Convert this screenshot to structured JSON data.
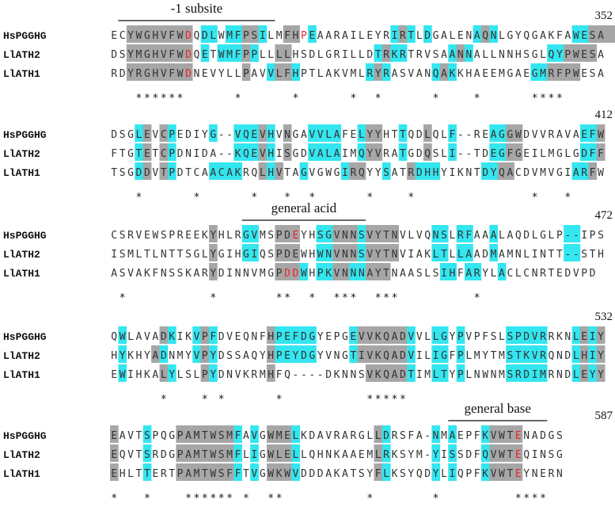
{
  "names": [
    "HsPGGHG",
    "LlATH2",
    "LlATH1"
  ],
  "colors": {
    "identical": "#a6a6a6",
    "similar": "#33e6f0",
    "catalytic": "#e8262a",
    "text": "#333333"
  },
  "blocks": [
    {
      "end": "352",
      "feature": {
        "label": "-1 subsite",
        "from": 1,
        "to": 19
      },
      "rows": [
        {
          "seq": "ECYWGHVFWDQDLWMFPSILMFHPEAARAILEYRIRTLDGALENAQNLGYQGAKFAWESA",
          "shade": "..gggggggg.cc.ccggc..gg.c.........cgc.c.....cgc.........ccgggg",
          "red": [
            9,
            23
          ]
        },
        {
          "seq": "DSYMGHVFWDQETWMFPPLLLLHSDLGRILLDTRKRTRVSAANNALLNNHSGLQYPWESA",
          "shade": "..gggggggg.c.cccgc..gg..........cgcc.....cgc.........ccgggg",
          "red": [
            9
          ]
        },
        {
          "seq": "RDYRGHVFWDNEVYLLPAVVLFHPTLAKVMLRYRASVANQAKKHAEEMGAEGMRFPWESA",
          "shade": "..gggggggg......g..cggc........cgc.....cgc.........ccgggg",
          "red": [
            9
          ]
        }
      ],
      "conservation": "   ******      *      *      *  *      *    *      ****"
    },
    {
      "end": "412",
      "feature": null,
      "rows": [
        {
          "seq": "DSGLEVCPEDIYG--VQEVHVNGAVVLAFELYYHTTQDLQLF--REAGGWDVVRAVAEFW",
          "shade": "...cg.gc....c..cccgc.g..cccc..cgg..c..g..c....ccgg.......ccg",
          "red": []
        },
        {
          "seq": "FTGTETCPDNIDA--KQEVHISGDVALAIMQYVRATGDQSLI--TDEGFGEILMGLGDFF",
          "shade": "...cg.gc.......cccgc.g..cccc..cgg..c..g..c....ccgg.......ccg",
          "red": []
        },
        {
          "seq": "TSGDDVTPDTCAACAKRQLHVTAGVGWGIRQYYSATRDHHYIKNTDYQACDVMVGIARFW",
          "shade": "...cg.gc....cccc..gcg..c....cgg..c..gccc.....ccgg.......ccg",
          "red": []
        }
      ],
      "conservation": "   *      *      *   *  *      *    *              *   *"
    },
    {
      "end": "472",
      "feature": {
        "label": "general acid",
        "from": 16,
        "to": 30
      },
      "rows": [
        {
          "seq": "CSRVEWSPREEKYHLRGVMSPDEYHSGVNNSVYTNVLVQNSLRFAAALAQDLGLP--IPS",
          "shade": "............g...cc..ggg..ccgggcgggg....cc.cc..c........cc...",
          "red": [
            22
          ]
        },
        {
          "seq": "ISMLTLNTTSGLYGIHGIQSPDEWHWNVNNSVYTNVIAKLTLLAADMAMNLINTT--STH",
          "shade": "............g...cc..ggg..ccgggcgggg....cc.cc..c........cc...",
          "red": []
        },
        {
          "seq": "ASVAKFNSSKARYDINNVMGPDDWHPKVNNNAYTNAASLSIHFARYLACLCNRTEDVPD",
          "shade": "............g.......gggc.ccggccggg......cc.cc..c.............",
          "red": [
            21,
            22
          ]
        }
      ],
      "conservation": " *          *       **  *  ***  ***         *"
    },
    {
      "end": "532",
      "feature": null,
      "rows": [
        {
          "seq": "QWLAVADKIKVPFDVEQNFHPEFDGYEPGEVVKQADVVLLGYPVPFSLSPDVRRKNLEIY",
          "shade": ".c....gc..cgc......gccccc....cggggggc..cc.c.....ccccc...cgcg",
          "red": []
        },
        {
          "seq": "HYKHYADNMYVPYDSSAQYHPEYDGYVNGTIVKQADVILIGFPLMYTMSTKVRQNDLHIY",
          "shade": ".c...gc...cgc......gccccc....cggggggc..cc.c.....ccccc...cgcg",
          "red": []
        },
        {
          "seq": "EWIHKALYLSLPYDNVKRMHFQ----DKNNSVKQADTIMLTYPLNWNMSRDIMRNDLEYY",
          "shade": ".c....gc...gc......g...........gggggc..cc.c.....ccccc...cgcg",
          "red": []
        }
      ],
      "conservation": "      *    * *      *          *****"
    },
    {
      "end": "587",
      "feature": {
        "label": "general base",
        "from": 41,
        "to": 52
      },
      "rows": [
        {
          "seq": "EAVTSPQGPAMTWSMFAVGWMELKDAVRARGLLDRSFA-NMAEPFKVWTENADGS",
          "shade": "g...c...gggggggc.c.gggc.........gc.....c.c...cgggg.....",
          "red": [
            49
          ]
        },
        {
          "seq": "EQVTSRDGPAMTWSMFLIGWLELLQHNKAAEMLRKSYM-YISSDFQVWTEQINSG",
          "shade": "g...c...gggggggc.c.gggc.........gc.....c.c...cgggg.....",
          "red": [
            49
          ]
        },
        {
          "seq": "EHLTTERTPAMTWSFFTVGWKWVDDDAKATSYFLKSYQDYLIQPFKVWTEYNERN",
          "shade": "g...c...gggggggc.c.gggc.........gc.....c.c...cgggg.....",
          "red": [
            49
          ]
        }
      ],
      "conservation": "*   *    ****** *  **          *       *         ****"
    }
  ]
}
